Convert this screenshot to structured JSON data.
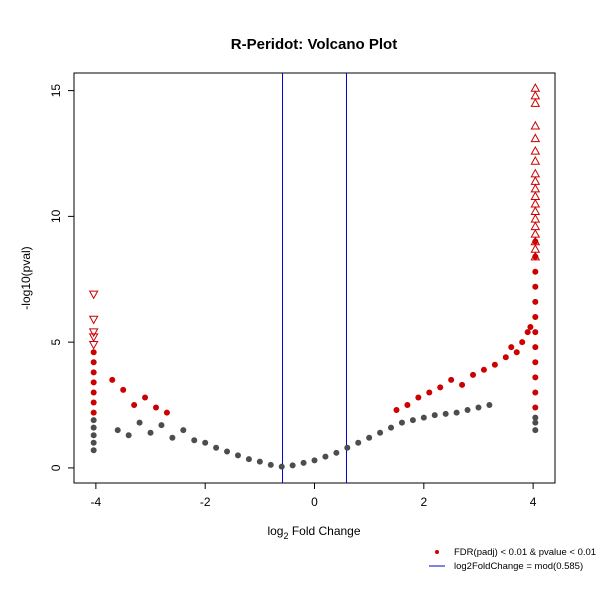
{
  "colors": {
    "significant": "#cc0000",
    "nonsignificant": "#4d4d4d",
    "threshold_line": "#0000cc",
    "axis": "#000000"
  },
  "legend": {
    "placement": "bottom-right, outside plot",
    "items": [
      {
        "label": "FDR(padj) < 0.01 & pvalue < 0.01",
        "marker": "dot",
        "color": "#cc0000"
      },
      {
        "label": "log2FoldChange = mod(0.585)",
        "marker": "line",
        "color": "#0000cc"
      }
    ]
  },
  "chart_data": {
    "type": "scatter",
    "title": "R-Peridot: Volcano Plot",
    "xlabel_prefix": "log",
    "xlabel_subscript": "2",
    "xlabel_suffix": " Fold Change",
    "ylabel": "-log10(pval)",
    "xlim": [
      -4.4,
      4.4
    ],
    "ylim": [
      -0.6,
      15.7
    ],
    "x_ticks": [
      -4,
      -2,
      0,
      2,
      4
    ],
    "x_tick_labels": [
      "-4",
      "-2",
      "0",
      "2",
      "4"
    ],
    "y_ticks": [
      0,
      5,
      10,
      15
    ],
    "y_tick_labels": [
      "0",
      "5",
      "10",
      "15"
    ],
    "grid": false,
    "vertical_lines": [
      -0.585,
      0.585
    ],
    "series": [
      {
        "name": "nonsignificant",
        "marker": "dot",
        "color": "#4d4d4d",
        "points": [
          [
            -4.04,
            0.7
          ],
          [
            -4.04,
            1.0
          ],
          [
            -4.04,
            1.3
          ],
          [
            -4.04,
            1.6
          ],
          [
            -4.04,
            1.9
          ],
          [
            -3.6,
            1.5
          ],
          [
            -3.4,
            1.3
          ],
          [
            -3.2,
            1.8
          ],
          [
            -3.0,
            1.4
          ],
          [
            -2.8,
            1.7
          ],
          [
            -2.6,
            1.2
          ],
          [
            -2.4,
            1.5
          ],
          [
            -2.2,
            1.1
          ],
          [
            -2.0,
            1.0
          ],
          [
            -1.8,
            0.8
          ],
          [
            -1.6,
            0.65
          ],
          [
            -1.4,
            0.5
          ],
          [
            -1.2,
            0.35
          ],
          [
            -1.0,
            0.25
          ],
          [
            -0.8,
            0.12
          ],
          [
            -0.6,
            0.05
          ],
          [
            -0.4,
            0.1
          ],
          [
            -0.2,
            0.2
          ],
          [
            0.0,
            0.3
          ],
          [
            0.2,
            0.45
          ],
          [
            0.4,
            0.6
          ],
          [
            0.6,
            0.8
          ],
          [
            0.8,
            1.0
          ],
          [
            1.0,
            1.2
          ],
          [
            1.2,
            1.4
          ],
          [
            1.4,
            1.6
          ],
          [
            1.6,
            1.8
          ],
          [
            1.8,
            1.9
          ],
          [
            2.0,
            2.0
          ],
          [
            2.2,
            2.1
          ],
          [
            2.4,
            2.15
          ],
          [
            2.6,
            2.2
          ],
          [
            2.8,
            2.3
          ],
          [
            3.0,
            2.4
          ],
          [
            3.2,
            2.5
          ],
          [
            4.04,
            1.5
          ],
          [
            4.04,
            1.8
          ],
          [
            4.04,
            2.0
          ]
        ]
      },
      {
        "name": "significant",
        "marker": "dot",
        "color": "#cc0000",
        "points": [
          [
            -4.04,
            2.2
          ],
          [
            -4.04,
            2.6
          ],
          [
            -4.04,
            3.0
          ],
          [
            -4.04,
            3.4
          ],
          [
            -4.04,
            3.8
          ],
          [
            -4.04,
            4.2
          ],
          [
            -4.04,
            4.6
          ],
          [
            -3.7,
            3.5
          ],
          [
            -3.5,
            3.1
          ],
          [
            -3.3,
            2.5
          ],
          [
            -3.1,
            2.8
          ],
          [
            -2.9,
            2.4
          ],
          [
            -2.7,
            2.2
          ],
          [
            1.5,
            2.3
          ],
          [
            1.7,
            2.5
          ],
          [
            1.9,
            2.8
          ],
          [
            2.1,
            3.0
          ],
          [
            2.3,
            3.2
          ],
          [
            2.5,
            3.5
          ],
          [
            2.7,
            3.3
          ],
          [
            2.9,
            3.7
          ],
          [
            3.1,
            3.9
          ],
          [
            3.3,
            4.1
          ],
          [
            3.5,
            4.4
          ],
          [
            3.6,
            4.8
          ],
          [
            3.7,
            4.6
          ],
          [
            3.8,
            5.0
          ],
          [
            3.9,
            5.4
          ],
          [
            3.95,
            5.6
          ],
          [
            4.04,
            2.4
          ],
          [
            4.04,
            3.0
          ],
          [
            4.04,
            3.6
          ],
          [
            4.04,
            4.2
          ],
          [
            4.04,
            4.8
          ],
          [
            4.04,
            5.4
          ],
          [
            4.04,
            6.0
          ],
          [
            4.04,
            6.6
          ],
          [
            4.04,
            7.2
          ],
          [
            4.04,
            7.8
          ],
          [
            4.04,
            8.4
          ],
          [
            4.04,
            9.0
          ]
        ]
      },
      {
        "name": "significant-capped-low",
        "marker": "triangle-down",
        "color": "#cc0000",
        "points": [
          [
            -4.04,
            6.9
          ],
          [
            -4.04,
            5.9
          ],
          [
            -4.04,
            5.4
          ],
          [
            -4.04,
            5.2
          ],
          [
            -4.04,
            4.9
          ]
        ]
      },
      {
        "name": "significant-capped-high",
        "marker": "triangle-up",
        "color": "#cc0000",
        "points": [
          [
            4.04,
            15.1
          ],
          [
            4.04,
            14.8
          ],
          [
            4.04,
            14.5
          ],
          [
            4.04,
            13.6
          ],
          [
            4.04,
            13.1
          ],
          [
            4.04,
            12.6
          ],
          [
            4.04,
            12.2
          ],
          [
            4.04,
            11.7
          ],
          [
            4.04,
            11.4
          ],
          [
            4.04,
            11.1
          ],
          [
            4.04,
            10.8
          ],
          [
            4.04,
            10.5
          ],
          [
            4.04,
            10.2
          ],
          [
            4.04,
            9.9
          ],
          [
            4.04,
            9.6
          ],
          [
            4.04,
            9.3
          ],
          [
            4.04,
            9.0
          ],
          [
            4.04,
            8.7
          ],
          [
            4.04,
            8.4
          ]
        ]
      }
    ]
  }
}
